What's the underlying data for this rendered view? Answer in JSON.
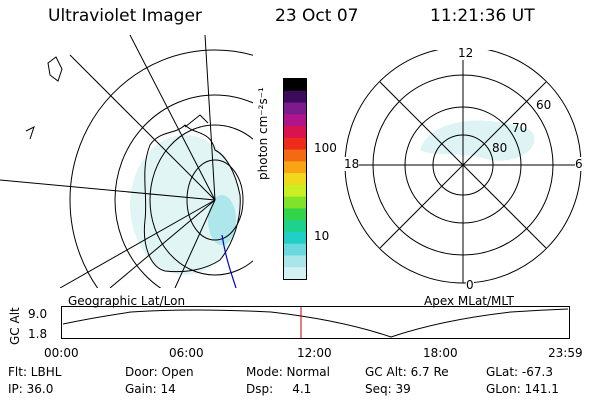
{
  "header": {
    "instrument": "Ultraviolet Imager",
    "date": "23 Oct 07",
    "time": "11:21:36 UT"
  },
  "colorbar": {
    "unit_label": "photon cm⁻²s⁻¹",
    "ticks": [
      "100",
      "10"
    ],
    "colors": [
      "#000000",
      "#3b0a5a",
      "#7b1b8e",
      "#b0148a",
      "#d9134f",
      "#ee2a1b",
      "#f46a12",
      "#f8a413",
      "#f0d81c",
      "#c9ee21",
      "#7ee329",
      "#33d44a",
      "#1ed18d",
      "#20d0c7",
      "#6ad9df",
      "#a9e6ea",
      "#d4f1f3"
    ]
  },
  "panels": {
    "geo_label": "Geographic Lat/Lon",
    "apex_label": "Apex MLat/MLT",
    "apex_labels": {
      "mlt_12": "12",
      "mlt_18": "18",
      "mlt_6": "6",
      "mlt_0": "0",
      "lat_60": "60",
      "lat_70": "70",
      "lat_80": "80"
    }
  },
  "orbit_plot": {
    "ylabel": "GC Alt",
    "y_ticks": [
      "9.0",
      "1.8"
    ],
    "x_ticks": [
      "00:00",
      "06:00",
      "12:00",
      "18:00",
      "23:59"
    ],
    "marker_color": "#cc0000"
  },
  "footer": {
    "col1": [
      "Flt: LBHL",
      "IP: 36.0"
    ],
    "col2": [
      "Door: Open",
      "Gain: 14"
    ],
    "col3": [
      "Mode: Normal",
      "Dsp:     4.1"
    ],
    "col4": [
      "GC Alt: 6.7 Re",
      "Seq: 39"
    ],
    "col5": [
      "GLat: -67.3",
      "GLon: 141.1"
    ]
  }
}
